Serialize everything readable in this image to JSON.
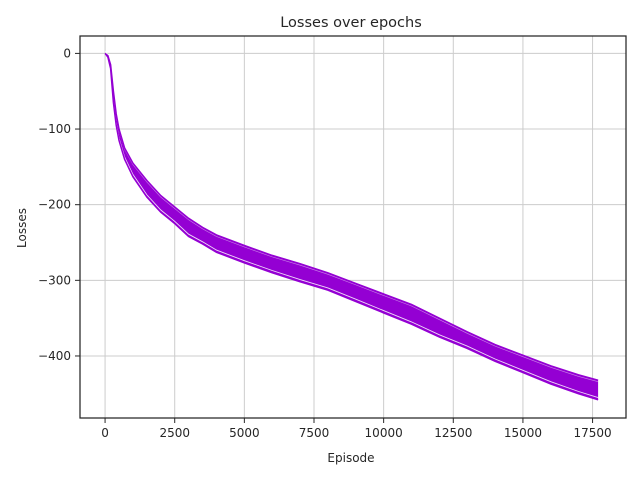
{
  "chart_data": {
    "type": "area",
    "title": "Losses over epochs",
    "xlabel": "Episode",
    "ylabel": "Losses",
    "xlim": [
      -900,
      18700
    ],
    "ylim": [
      -482,
      23
    ],
    "xticks": [
      0,
      2500,
      5000,
      7500,
      10000,
      12500,
      15000,
      17500
    ],
    "xtick_labels": [
      "0",
      "2500",
      "5000",
      "7500",
      "10000",
      "12500",
      "15000",
      "17500"
    ],
    "yticks": [
      0,
      -100,
      -200,
      -300,
      -400
    ],
    "ytick_labels": [
      "0",
      "−100",
      "−200",
      "−300",
      "−400"
    ],
    "grid": true,
    "series": [
      {
        "color": "#9400D3",
        "x": [
          0,
          100,
          200,
          300,
          400,
          500,
          700,
          1000,
          1500,
          2000,
          2500,
          3000,
          3500,
          4000,
          5000,
          6000,
          7000,
          8000,
          9000,
          10000,
          11000,
          12000,
          13000,
          14000,
          15000,
          16000,
          17000,
          17700
        ],
        "upper": [
          0,
          -3,
          -15,
          -50,
          -80,
          -100,
          -125,
          -145,
          -168,
          -188,
          -203,
          -218,
          -230,
          -240,
          -254,
          -267,
          -278,
          -290,
          -304,
          -318,
          -332,
          -350,
          -368,
          -385,
          -399,
          -413,
          -425,
          -432
        ],
        "lower": [
          0,
          -5,
          -20,
          -65,
          -95,
          -115,
          -140,
          -163,
          -190,
          -210,
          -225,
          -242,
          -252,
          -263,
          -277,
          -290,
          -302,
          -313,
          -328,
          -343,
          -358,
          -375,
          -390,
          -407,
          -422,
          -437,
          -450,
          -458
        ],
        "mean": [
          0,
          -4,
          -17,
          -57,
          -87,
          -107,
          -132,
          -154,
          -179,
          -199,
          -214,
          -230,
          -241,
          -251,
          -265,
          -278,
          -290,
          -302,
          -316,
          -330,
          -345,
          -362,
          -379,
          -396,
          -410,
          -425,
          -437,
          -445
        ]
      }
    ]
  }
}
